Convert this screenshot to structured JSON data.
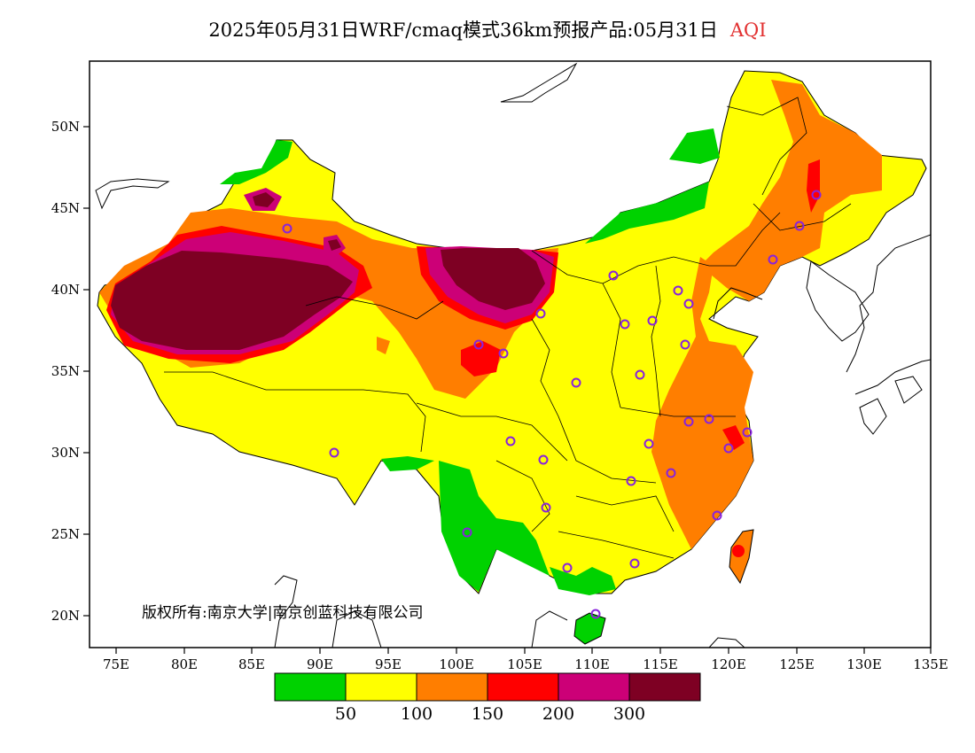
{
  "title": {
    "main": "2025年05月31日WRF/cmaq模式36km预报产品:05月31日",
    "variable": "AQI"
  },
  "copyright": "版权所有:南京大学|南京创蓝科技有限公司",
  "axes": {
    "lat_labels": [
      "20N",
      "25N",
      "30N",
      "35N",
      "40N",
      "45N",
      "50N"
    ],
    "lon_labels": [
      "75E",
      "80E",
      "85E",
      "90E",
      "95E",
      "100E",
      "105E",
      "110E",
      "115E",
      "120E",
      "125E",
      "130E",
      "135E"
    ]
  },
  "legend": {
    "colors": [
      "#00d200",
      "#ffff00",
      "#ff7e00",
      "#ff0000",
      "#cc0077",
      "#7e0023"
    ],
    "ticks": [
      "50",
      "100",
      "150",
      "200",
      "300"
    ]
  },
  "icons": {
    "station": "circle-marker-icon"
  }
}
